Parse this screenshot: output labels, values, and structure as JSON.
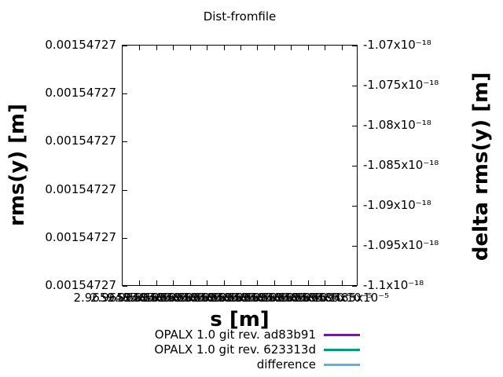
{
  "title": "Dist-fromfile",
  "axes": {
    "x": {
      "label": "s [m]",
      "tick_labels": [
        "2.9659485x10⁻⁵",
        "2.9659485x10⁻⁵",
        "2.9659485x10⁻⁵",
        "2.9659485x10⁻⁵",
        "2.9659485x10⁻⁵",
        "2.9659485x10⁻⁵",
        "2.9659485x10⁻⁵",
        "2.9659485x10⁻⁵",
        "2.9659485x10⁻⁵",
        "2.9659485x10⁻⁵",
        "2.9659485x10⁻⁵",
        "2.9659485x10⁻⁵",
        "2.9659485x10⁻⁵",
        "2.9659485x10⁻⁵"
      ],
      "note": "tick labels overlap each other and are illegible; first starts with 2.96, all end with x10⁻⁵"
    },
    "y_left": {
      "label": "rms(y) [m]",
      "tick_labels": [
        "0.00154727",
        "0.00154727",
        "0.00154727",
        "0.00154727",
        "0.00154727",
        "0.00154727"
      ]
    },
    "y_right": {
      "label": "delta rms(y) [m]",
      "tick_labels": [
        "-1.07x10⁻¹⁸",
        "-1.075x10⁻¹⁸",
        "-1.08x10⁻¹⁸",
        "-1.085x10⁻¹⁸",
        "-1.09x10⁻¹⁸",
        "-1.095x10⁻¹⁸",
        "-1.1x10⁻¹⁸"
      ]
    }
  },
  "legend": [
    {
      "label": "OPALX 1.0 git rev. ad83b91",
      "color": "#9400d3"
    },
    {
      "label": "OPALX 1.0 git rev. 623313d",
      "color": "#009e73"
    },
    {
      "label": "difference",
      "color": "#56b4e9"
    }
  ],
  "chart_data": {
    "type": "line",
    "title": "Dist-fromfile",
    "xlabel": "s [m]",
    "ylabel_left": "rms(y) [m]",
    "ylabel_right": "delta rms(y) [m]",
    "x_tick_value_approx": "2.96…x10⁻⁵ (labels overlap illegibly)",
    "y_left_axis": {
      "tick_values": [
        0.00154727,
        0.00154727,
        0.00154727,
        0.00154727,
        0.00154727,
        0.00154727
      ],
      "note": "all left tick labels identical at displayed precision"
    },
    "y_right_axis": {
      "tick_values_x1e18": [
        -1.07,
        -1.075,
        -1.08,
        -1.085,
        -1.09,
        -1.095,
        -1.1
      ],
      "range": [
        -1.1e-18,
        -1.07e-18
      ]
    },
    "grid": false,
    "legend_position": "below plot, bottom center-right",
    "series": [
      {
        "name": "OPALX 1.0 git rev. ad83b91",
        "color": "#9400d3",
        "visible_points": []
      },
      {
        "name": "OPALX 1.0 git rev. 623313d",
        "color": "#009e73",
        "visible_points": []
      },
      {
        "name": "difference",
        "color": "#56b4e9",
        "visible_points": []
      }
    ],
    "note": "plot area is empty — no curves are visible inside the axes"
  }
}
